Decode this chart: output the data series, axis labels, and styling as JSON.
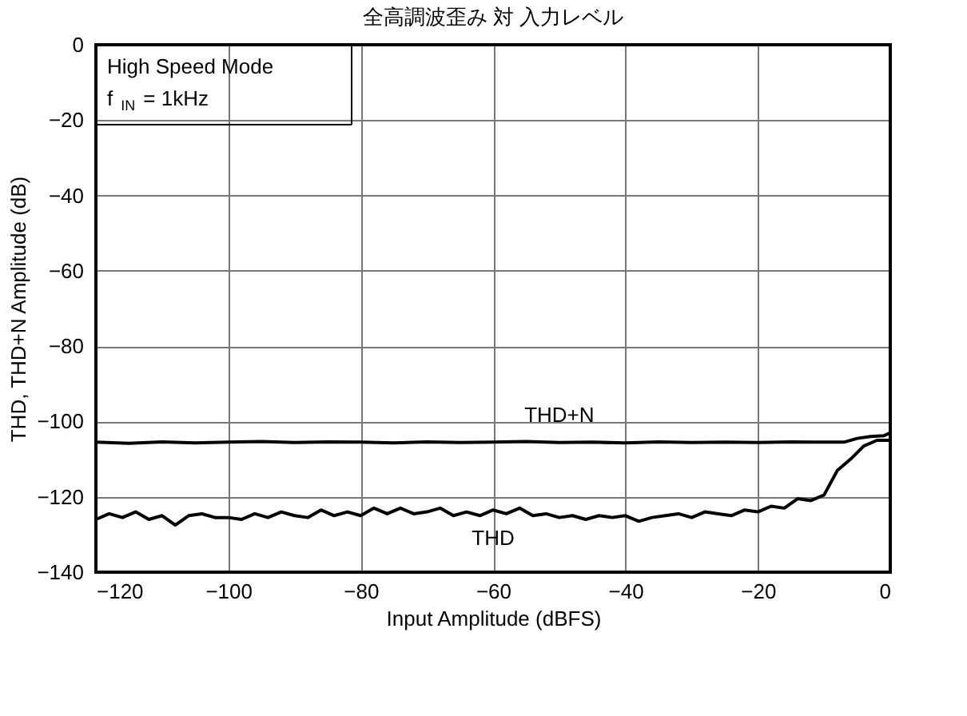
{
  "chart_data": {
    "type": "line",
    "title": "全高調波歪み 対 入力レベル",
    "xlabel": "Input Amplitude (dBFS)",
    "ylabel": "THD, THD+N Amplitude (dB)",
    "xlim": [
      -120,
      0
    ],
    "xticks": [
      -120,
      -100,
      -80,
      -60,
      -40,
      -20,
      0
    ],
    "ylim": [
      -140,
      0
    ],
    "yticks": [
      0,
      -20,
      -40,
      -60,
      -80,
      -100,
      -120,
      -140
    ],
    "grid": true,
    "legend": false,
    "marker": "none",
    "line_style": "solid",
    "annotations": [
      "High  Speed Mode",
      "f$_{IN}$ = 1kHz"
    ],
    "series": [
      {
        "name": "THD+N",
        "color": "#000000",
        "x": [
          -120,
          -115,
          -110,
          -105,
          -100,
          -95,
          -90,
          -85,
          -80,
          -75,
          -70,
          -65,
          -60,
          -55,
          -50,
          -45,
          -40,
          -35,
          -30,
          -25,
          -20,
          -15,
          -10,
          -7,
          -5,
          -3,
          -1,
          0
        ],
        "values": [
          -105.5,
          -105.8,
          -105.4,
          -105.7,
          -105.5,
          -105.3,
          -105.6,
          -105.4,
          -105.5,
          -105.7,
          -105.4,
          -105.6,
          -105.5,
          -105.3,
          -105.6,
          -105.5,
          -105.7,
          -105.4,
          -105.6,
          -105.5,
          -105.6,
          -105.4,
          -105.5,
          -105.5,
          -104.5,
          -104,
          -103.8,
          -103
        ]
      },
      {
        "name": "THD",
        "color": "#000000",
        "x": [
          -120,
          -118,
          -116,
          -114,
          -112,
          -110,
          -108,
          -106,
          -104,
          -102,
          -100,
          -98,
          -96,
          -94,
          -92,
          -90,
          -88,
          -86,
          -84,
          -82,
          -80,
          -78,
          -76,
          -74,
          -72,
          -70,
          -68,
          -66,
          -64,
          -62,
          -60,
          -58,
          -56,
          -54,
          -52,
          -50,
          -48,
          -46,
          -44,
          -42,
          -40,
          -38,
          -36,
          -34,
          -32,
          -30,
          -28,
          -26,
          -24,
          -22,
          -20,
          -18,
          -16,
          -14,
          -12,
          -10,
          -8,
          -6,
          -4,
          -2,
          0
        ],
        "values": [
          -126,
          -124.5,
          -125.5,
          -124,
          -126,
          -125,
          -127.5,
          -125,
          -124.5,
          -125.5,
          -125.5,
          -126,
          -124.5,
          -125.5,
          -124,
          -125,
          -125.5,
          -123.5,
          -125,
          -124,
          -125,
          -123,
          -124.5,
          -123,
          -124.5,
          -124,
          -123,
          -125,
          -124,
          -125,
          -123.5,
          -124.5,
          -123,
          -125,
          -124.5,
          -125.5,
          -125,
          -126,
          -125,
          -125.5,
          -125,
          -126.5,
          -125.5,
          -125,
          -124.5,
          -125.5,
          -124,
          -124.5,
          -125,
          -123.5,
          -124,
          -122.5,
          -123,
          -120.5,
          -121,
          -119.5,
          -113,
          -110,
          -106.5,
          -105,
          -105
        ]
      }
    ]
  }
}
